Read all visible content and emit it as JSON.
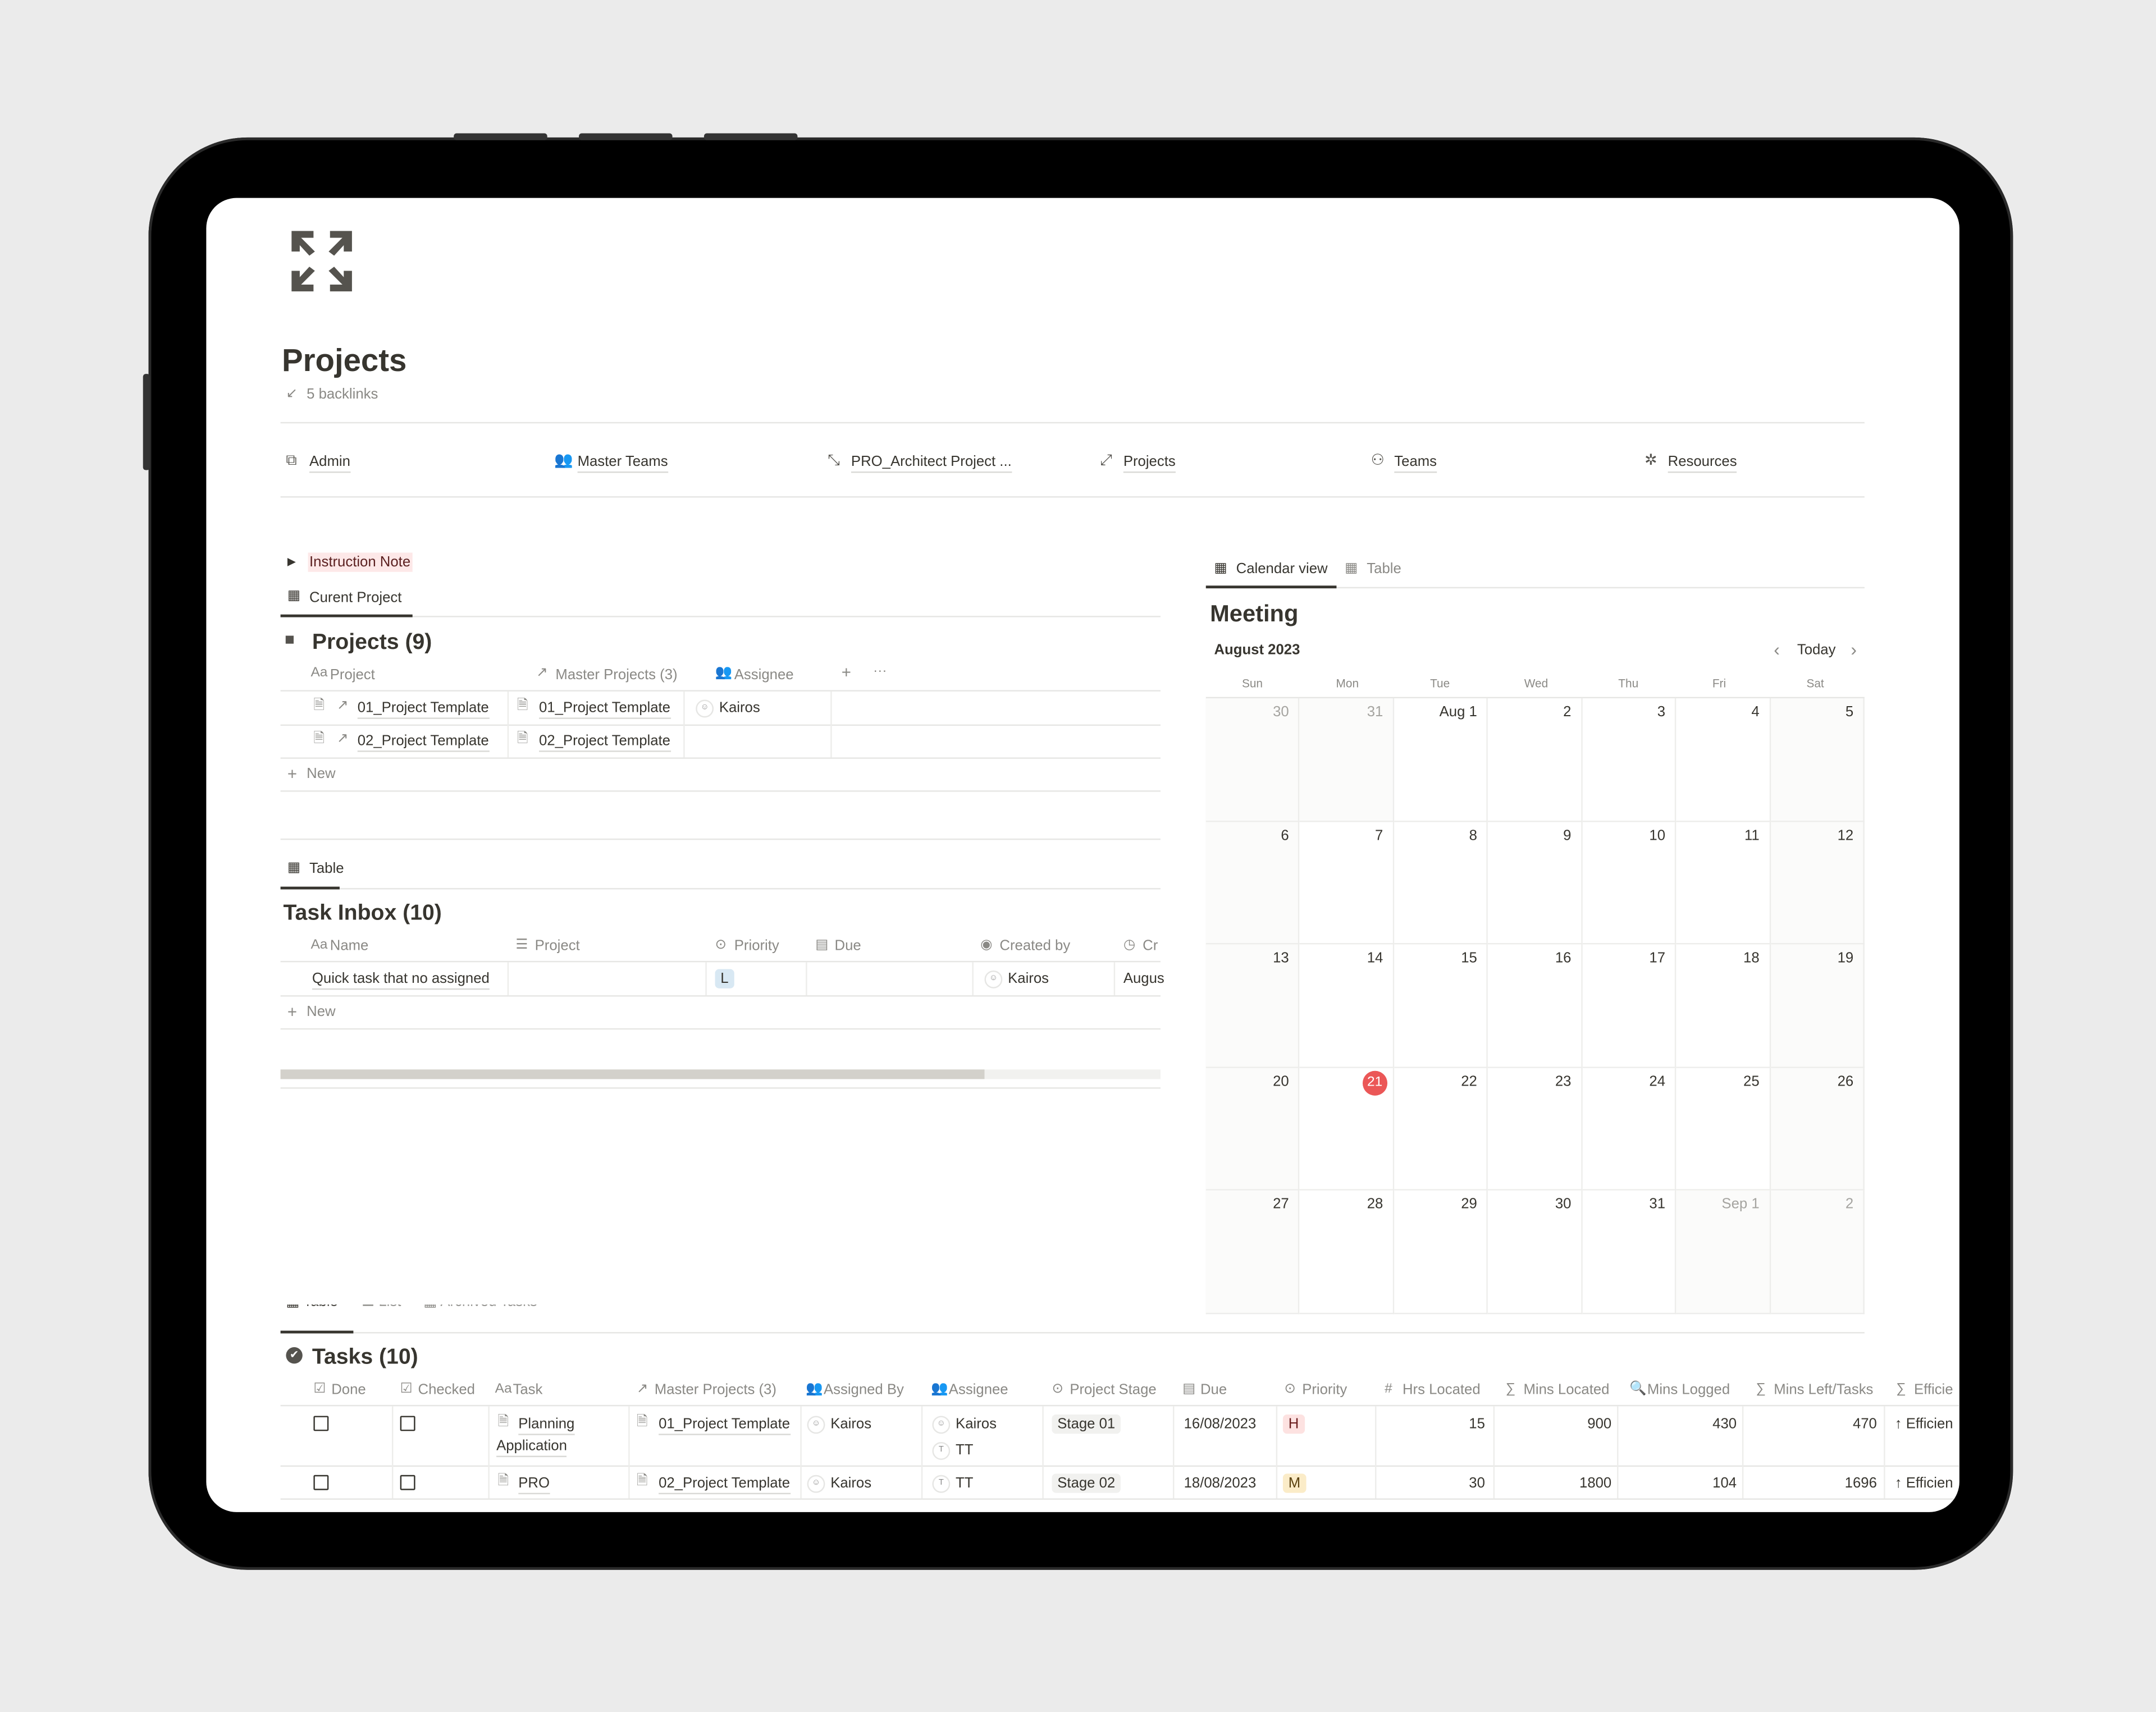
{
  "page": {
    "title": "Projects",
    "backlinks": "5 backlinks"
  },
  "nav": [
    {
      "label": "Admin",
      "icon": "external-frame-icon"
    },
    {
      "label": "Master Teams",
      "icon": "team-icon"
    },
    {
      "label": "PRO_Architect Project ...",
      "icon": "collapse-arrows-icon"
    },
    {
      "label": "Projects",
      "icon": "expand-arrows-icon"
    },
    {
      "label": "Teams",
      "icon": "people-icon"
    },
    {
      "label": "Resources",
      "icon": "resources-icon"
    }
  ],
  "instruction": {
    "label": "Instruction Note",
    "bg": "#fde8e8"
  },
  "projects_db": {
    "tab": "Curent Project",
    "title": "Projects (9)",
    "headers": [
      "Project",
      "Master Projects (3)",
      "Assignee"
    ],
    "header_prefix": "Aa",
    "rows": [
      {
        "project": "01_Project Template",
        "master": "01_Project Template",
        "assignee": "Kairos"
      },
      {
        "project": "02_Project Template",
        "master": "02_Project Template",
        "assignee": ""
      }
    ],
    "new": "New",
    "add": "+",
    "more": "···"
  },
  "inbox_db": {
    "tab": "Table",
    "title": "Task Inbox (10)",
    "header_prefix": "Aa",
    "headers": [
      "Name",
      "Project",
      "Priority",
      "Due",
      "Created by",
      "Cr"
    ],
    "rows": [
      {
        "name": "Quick task that no assigned",
        "project": "",
        "priority": "L",
        "due": "",
        "created_by": "Kairos",
        "created": "Augus"
      }
    ],
    "new": "New",
    "scroll_fraction": 0.8
  },
  "calendar": {
    "tabs": [
      "Calendar view",
      "Table"
    ],
    "title": "Meeting",
    "month": "August 2023",
    "today": "Today",
    "weekdays": [
      "Sun",
      "Mon",
      "Tue",
      "Wed",
      "Thu",
      "Fri",
      "Sat"
    ],
    "weeks": [
      [
        "30",
        "31",
        "Aug 1",
        "2",
        "3",
        "4",
        "5"
      ],
      [
        "6",
        "7",
        "8",
        "9",
        "10",
        "11",
        "12"
      ],
      [
        "13",
        "14",
        "15",
        "16",
        "17",
        "18",
        "19"
      ],
      [
        "20",
        "21",
        "22",
        "23",
        "24",
        "25",
        "26"
      ],
      [
        "27",
        "28",
        "29",
        "30",
        "31",
        "Sep 1",
        "2"
      ]
    ],
    "outside": [
      [
        0,
        0
      ],
      [
        0,
        1
      ],
      [
        4,
        5
      ],
      [
        4,
        6
      ]
    ],
    "today_cell": [
      3,
      1
    ],
    "today_color": "#eb5757"
  },
  "tasks_db": {
    "tabs": [
      "Table",
      "List",
      "Archived Tasks"
    ],
    "title": "Tasks (10)",
    "headers": [
      "Done",
      "Checked",
      "Task",
      "Master Projects (3)",
      "Assigned By",
      "Assignee",
      "Project Stage",
      "Due",
      "Priority",
      "Hrs Located",
      "Mins Located",
      "Mins Logged",
      "Mins Left/Tasks",
      "Efficie"
    ],
    "rows": [
      {
        "task": [
          "Planning",
          "Application"
        ],
        "master": "01_Project Template",
        "assigned_by": "Kairos",
        "assignee": [
          "Kairos",
          "TT"
        ],
        "stage": "Stage 01",
        "due": "16/08/2023",
        "priority": "H",
        "hrs": "15",
        "mins_loc": "900",
        "mins_log": "430",
        "mins_left": "470",
        "eff": "↑ Efficien"
      },
      {
        "task": [
          "PRO"
        ],
        "master": "02_Project Template",
        "assigned_by": "Kairos",
        "assignee": [
          "TT"
        ],
        "stage": "Stage 02",
        "due": "18/08/2023",
        "priority": "M",
        "hrs": "30",
        "mins_loc": "1800",
        "mins_log": "104",
        "mins_left": "1696",
        "eff": "↑ Efficien"
      }
    ],
    "priority_colors": {
      "H": "#fde2e1",
      "M": "#fbecc8",
      "L": "#d8e8f3"
    }
  }
}
